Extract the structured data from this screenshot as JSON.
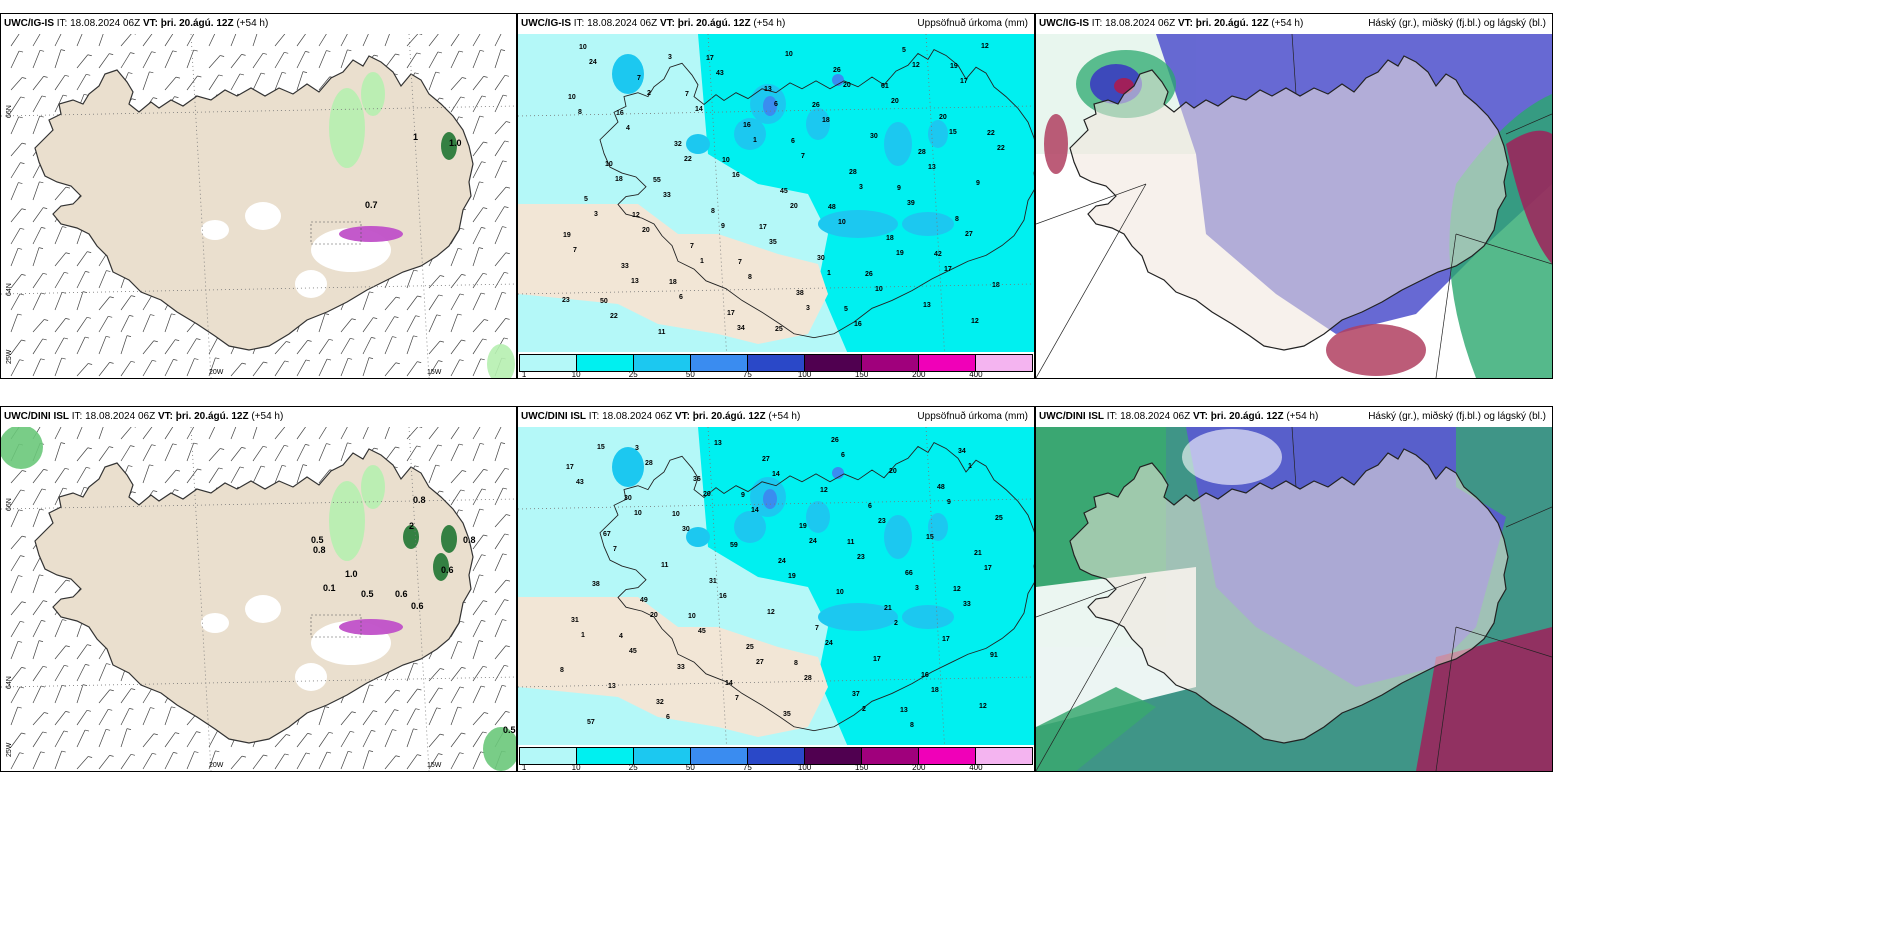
{
  "it_label": "IT:",
  "vt_label": "VT:",
  "panels": {
    "wind_top": {
      "model": "UWC/IG-IS",
      "it": "18.08.2024 06Z",
      "vt": "þri. 20.ágú. 12Z",
      "step": "(+54 h)",
      "right": ""
    },
    "precip_top": {
      "model": "UWC/IG-IS",
      "it": "18.08.2024 06Z",
      "vt": "þri. 20.ágú. 12Z",
      "step": "(+54 h)",
      "right": "Uppsöfnuð úrkoma (mm)"
    },
    "cloud_top": {
      "model": "UWC/IG-IS",
      "it": "18.08.2024 06Z",
      "vt": "þri. 20.ágú. 12Z",
      "step": "(+54 h)",
      "right": "Háský (gr.), miðský (fj.bl.) og lágský (bl.)"
    },
    "wind_bot": {
      "model": "UWC/DINI ISL",
      "it": "18.08.2024 06Z",
      "vt": "þri. 20.ágú. 12Z",
      "step": "(+54 h)",
      "right": ""
    },
    "precip_bot": {
      "model": "UWC/DINI ISL",
      "it": "18.08.2024 06Z",
      "vt": "þri. 20.ágú. 12Z",
      "step": "(+54 h)",
      "right": "Uppsöfnuð úrkoma (mm)"
    },
    "cloud_bot": {
      "model": "UWC/DINI ISL",
      "it": "18.08.2024 06Z",
      "vt": "þri. 20.ágú. 12Z",
      "step": "(+54 h)",
      "right": "Háský (gr.), miðský (fj.bl.) og lágský (bl.)"
    }
  },
  "grid_labels": {
    "lon": [
      "20W",
      "15W"
    ],
    "lat": [
      "66N",
      "64N",
      "25W"
    ]
  },
  "colorbar": {
    "labels": [
      "1",
      "10",
      "25",
      "50",
      "75",
      "100",
      "150",
      "200",
      "400"
    ],
    "colors": [
      "#b4f8f8",
      "#00f0f0",
      "#1cc8f0",
      "#3a8cf0",
      "#2a48c8",
      "#500050",
      "#a0007c",
      "#f000b8",
      "#f4b4f0"
    ]
  },
  "wind_top_values": [
    "1",
    "1.0",
    "0.7"
  ],
  "wind_bot_values": [
    "0.8",
    "0.5",
    "0.8",
    "2",
    "0.8",
    "0.6",
    "1.0",
    "0.1",
    "0.5",
    "0.6",
    "0.6",
    "0.5"
  ],
  "precip_top_values": [
    "10",
    "12",
    "7",
    "7",
    "6",
    "5",
    "9",
    "19",
    "19",
    "16",
    "18",
    "10",
    "25",
    "48",
    "61",
    "42",
    "22",
    "50",
    "55",
    "17",
    "17",
    "26",
    "26",
    "28",
    "12",
    "5",
    "7",
    "7",
    "16",
    "38",
    "28",
    "5",
    "8",
    "10",
    "33",
    "32",
    "17",
    "45",
    "26",
    "18",
    "20",
    "18",
    "10",
    "11",
    "8",
    "13",
    "30",
    "30",
    "13",
    "9",
    "24",
    "20",
    "14",
    "8",
    "7",
    "16",
    "39",
    "17",
    "7",
    "4",
    "6",
    "16",
    "10",
    "10",
    "20",
    "17",
    "22",
    "22",
    "33",
    "43",
    "35",
    "18",
    "10",
    "13",
    "12",
    "3",
    "2",
    "1",
    "1",
    "3",
    "3",
    "12",
    "27",
    "8",
    "13",
    "22",
    "34",
    "20",
    "20",
    "19",
    "15",
    "23",
    "18",
    "3",
    "9",
    "6",
    "1"
  ],
  "precip_bot_values": [
    "3",
    "10",
    "9",
    "8",
    "11",
    "13",
    "12",
    "17",
    "4",
    "10",
    "14",
    "24",
    "26",
    "21",
    "48",
    "91",
    "67",
    "32",
    "31",
    "27",
    "7",
    "6",
    "16",
    "21",
    "57",
    "49",
    "36",
    "25",
    "19",
    "37",
    "66",
    "34",
    "31",
    "30",
    "33",
    "59",
    "35",
    "10",
    "20",
    "17",
    "25",
    "13",
    "11",
    "13",
    "12",
    "12",
    "17",
    "15",
    "12",
    "38",
    "28",
    "45",
    "14",
    "28",
    "23",
    "8",
    "33",
    "43",
    "45",
    "30",
    "7",
    "19",
    "6",
    "2",
    "9",
    "8",
    "7",
    "6",
    "16",
    "14",
    "24",
    "23",
    "18",
    "17",
    "15",
    "20",
    "20",
    "27",
    "24",
    "2",
    "3",
    "1",
    "1",
    "10"
  ]
}
